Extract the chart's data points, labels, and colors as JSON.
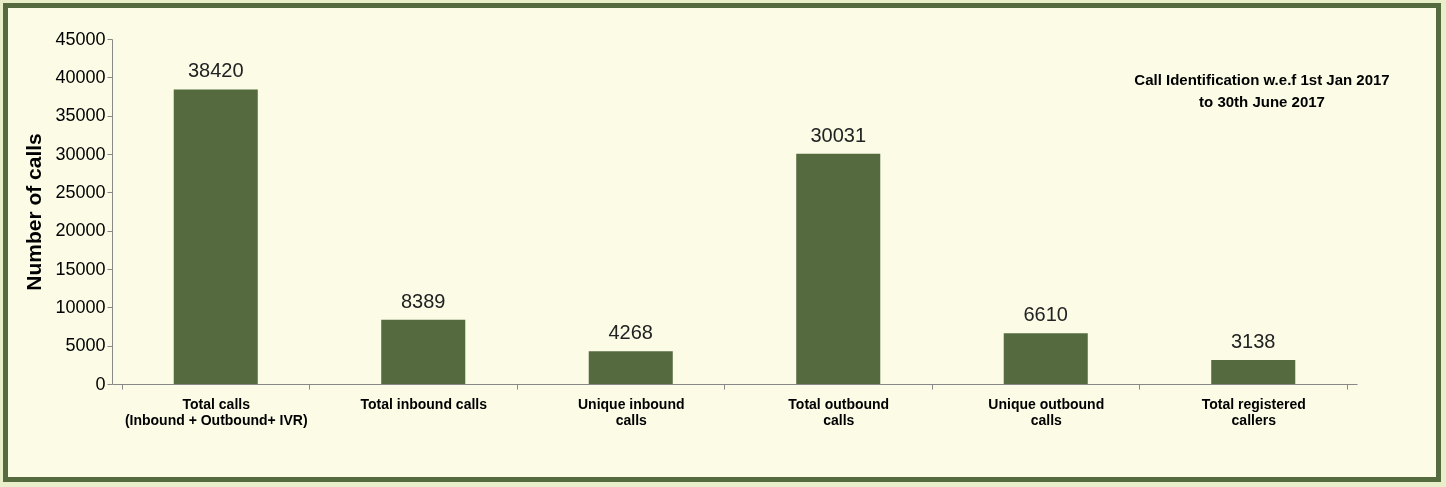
{
  "chart_data": {
    "type": "bar",
    "title": "Call Identification w.e.f 1st Jan 2017\nto 30th June 2017",
    "ylabel": "Number of calls",
    "categories": [
      "Total calls\n(Inbound + Outbound+ IVR)",
      "Total inbound calls",
      "Unique  inbound\ncalls",
      "Total outbound\ncalls",
      "Unique outbound\ncalls",
      "Total registered\ncallers"
    ],
    "values": [
      38420,
      8389,
      4268,
      30031,
      6610,
      3138
    ],
    "color": "#556b3f",
    "ylim": [
      0,
      45000
    ],
    "yticks": [
      0,
      5000,
      10000,
      15000,
      20000,
      25000,
      30000,
      35000,
      40000,
      45000
    ],
    "grid": false,
    "data_labels": true
  }
}
